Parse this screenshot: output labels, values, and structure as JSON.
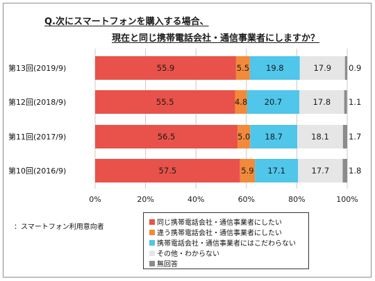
{
  "title_line1": "Q.次にスマートフォンを購入する場合、",
  "title_line2": "現在と同じ携帯電話会社・通信事業者にしますか？",
  "note": "：スマートフォン利用意向者",
  "colors": {
    "same_carrier": "#e8524a",
    "different_carrier": "#f18a3a",
    "no_preference": "#4fc6ea",
    "other_unknown": "#e6e6e6",
    "no_answer": "#8c8c8c"
  },
  "chart_data": {
    "type": "bar",
    "orientation": "horizontal",
    "stacked": true,
    "percent_stacked": true,
    "categories": [
      "第13回(2019/9)",
      "第12回(2018/9)",
      "第11回(2017/9)",
      "第10回(2016/9)"
    ],
    "series": [
      {
        "name": "同じ携帯電話会社・通信事業者にしたい",
        "values": [
          55.9,
          55.5,
          56.5,
          57.5
        ],
        "color": "#e8524a"
      },
      {
        "name": "違う携帯電話会社・通信事業者にしたい",
        "values": [
          5.5,
          4.8,
          5.0,
          5.9
        ],
        "color": "#f18a3a"
      },
      {
        "name": "携帯電話会社・通信事業者にはこだわらない",
        "values": [
          19.8,
          20.7,
          18.7,
          17.1
        ],
        "color": "#4fc6ea"
      },
      {
        "name": "その他・わからない",
        "values": [
          17.9,
          17.8,
          18.1,
          17.7
        ],
        "color": "#e6e6e6"
      },
      {
        "name": "無回答",
        "values": [
          0.9,
          1.1,
          1.7,
          1.8
        ],
        "color": "#8c8c8c"
      }
    ],
    "xlim": [
      0,
      100
    ],
    "xticks": [
      "0%",
      "20%",
      "40%",
      "60%",
      "80%",
      "100%"
    ],
    "grid": true,
    "legend_position": "bottom-center"
  }
}
